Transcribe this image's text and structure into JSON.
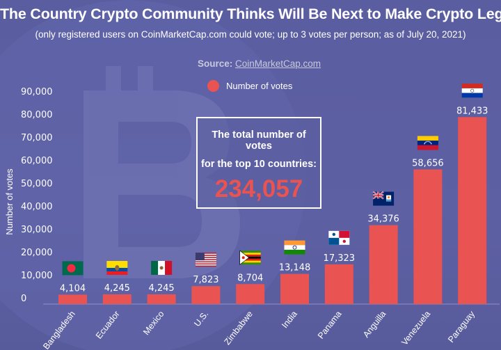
{
  "title": "The Country Crypto Community Thinks Will Be Next to Make Crypto Legal",
  "subtitle": "(only registered users on CoinMarketCap.com could vote; up to 3 votes per person; as of July 20, 2021)",
  "source": {
    "label": "Source:",
    "link": "CoinMarketCap.com"
  },
  "infobox": {
    "line1": "The total number of votes",
    "line2": "for the top 10 countries:",
    "total": "234,057"
  },
  "colors": {
    "bar": "#e95352",
    "background": "#5b5ea0",
    "text": "#ffffff"
  },
  "chart_data": {
    "type": "bar",
    "ylabel": "Number of votes",
    "xlabel": "",
    "ylim": [
      0,
      90000
    ],
    "yticks": [
      0,
      10000,
      20000,
      30000,
      40000,
      50000,
      60000,
      70000,
      80000,
      90000
    ],
    "ytick_labels": [
      "0",
      "10,000",
      "20,000",
      "30,000",
      "40,000",
      "50,000",
      "60,000",
      "70,000",
      "80,000",
      "90,000"
    ],
    "legend": {
      "label": "Number of votes",
      "position": "top"
    },
    "grid": false,
    "categories": [
      "Bangladesh",
      "Ecuador",
      "Mexico",
      "U.S.",
      "Zimbabwe",
      "India",
      "Panama",
      "Anguilla",
      "Venezuela",
      "Paraguay"
    ],
    "values": [
      4104,
      4245,
      4245,
      7823,
      8704,
      13148,
      17323,
      34376,
      58656,
      81433
    ],
    "value_labels": [
      "4,104",
      "4,245",
      "4,245",
      "7,823",
      "8,704",
      "13,148",
      "17,323",
      "34,376",
      "58,656",
      "81,433"
    ],
    "flag_icons": [
      "bangladesh-flag-icon",
      "ecuador-flag-icon",
      "mexico-flag-icon",
      "us-flag-icon",
      "zimbabwe-flag-icon",
      "india-flag-icon",
      "panama-flag-icon",
      "anguilla-flag-icon",
      "venezuela-flag-icon",
      "paraguay-flag-icon"
    ]
  }
}
